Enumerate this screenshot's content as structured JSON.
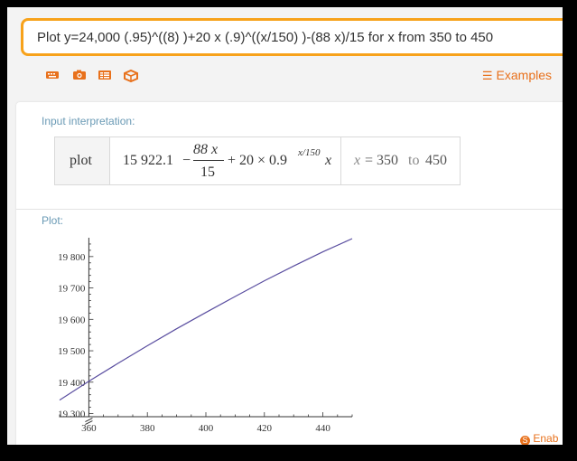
{
  "search": {
    "query": "Plot y=24,000 (.95)^((8) )+20 x (.9)^((x/150) )-(88 x)/15 for x from 350 to 450"
  },
  "toolbar": {
    "icons": [
      "keyboard-icon",
      "camera-icon",
      "list-icon",
      "dice-icon"
    ],
    "examples_label": "Examples"
  },
  "input_interpretation": {
    "section_label": "Input interpretation:",
    "plot_word": "plot",
    "constant": "15 922.1",
    "minus": "−",
    "frac_num": "88 x",
    "frac_den": "15",
    "plus_term": "+ 20 × 0.9",
    "exponent": "x/150",
    "trailing_x": "x",
    "range_var": "x",
    "range_eq": "= 350",
    "range_to": "to",
    "range_end": "450"
  },
  "plot_section": {
    "section_label": "Plot:"
  },
  "chart_data": {
    "type": "line",
    "x": [
      350,
      360,
      370,
      380,
      390,
      400,
      410,
      420,
      430,
      440,
      450
    ],
    "y": [
      19343,
      19403,
      19460,
      19516,
      19570,
      19622,
      19673,
      19723,
      19770,
      19815,
      19857
    ],
    "xticks": [
      360,
      380,
      400,
      420,
      440
    ],
    "yticks": [
      19300,
      19400,
      19500,
      19600,
      19700,
      19800
    ],
    "ytick_labels": [
      "19 300",
      "19 400",
      "19 500",
      "19 600",
      "19 700",
      "19 800"
    ],
    "xlim": [
      350,
      450
    ],
    "ylim": [
      19290,
      19860
    ],
    "line_color": "#5a4ea0",
    "axis_break": true,
    "title": "",
    "xlabel": "",
    "ylabel": ""
  },
  "footer": {
    "enable_label": "Enab"
  },
  "colors": {
    "accent": "#e8711c",
    "search_border": "#f7a21b",
    "section_label": "#6a9ab5"
  }
}
